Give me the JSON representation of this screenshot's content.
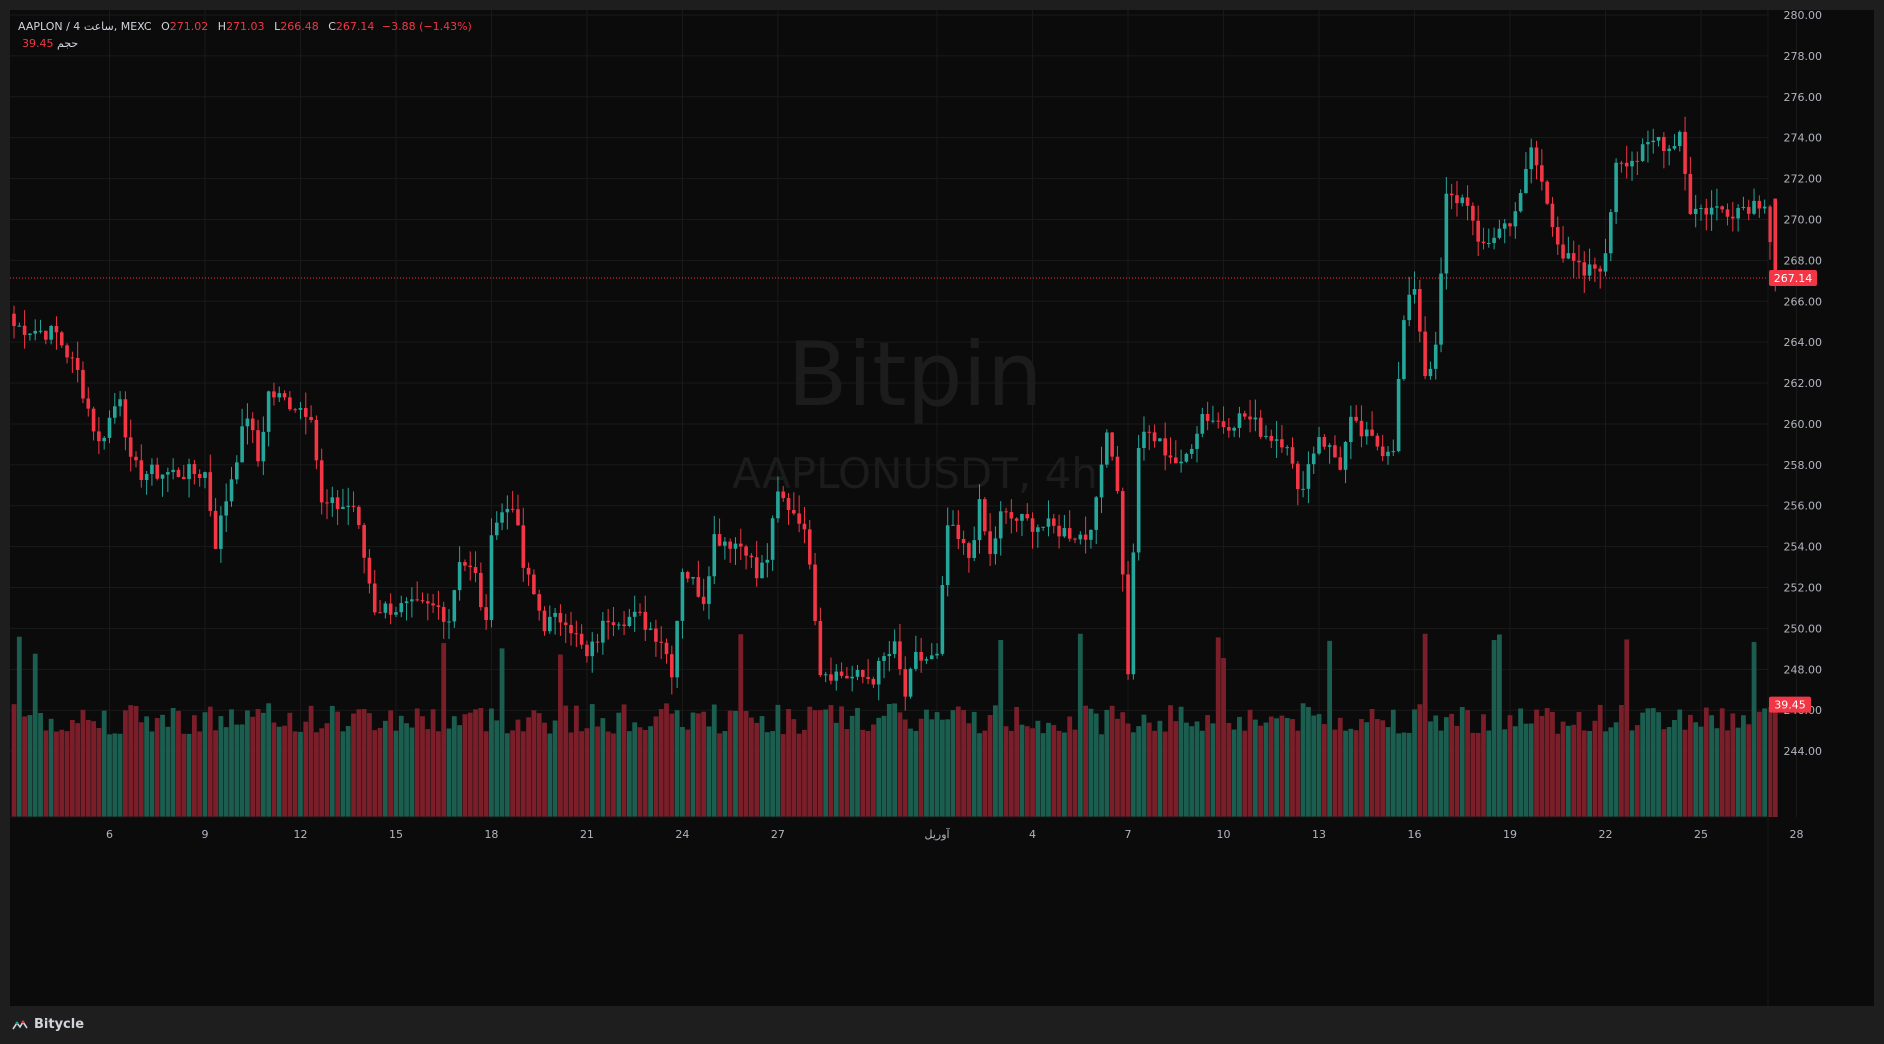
{
  "legend": {
    "symbol": "AAPLON / 4 ساعت, MEXC",
    "open_label": "O",
    "open": "271.02",
    "high_label": "H",
    "high": "271.03",
    "low_label": "L",
    "low": "266.48",
    "close_label": "C",
    "close": "267.14",
    "change": "−3.88 (−1.43%)",
    "volume_label": "حجم",
    "volume": "39.45"
  },
  "watermark": {
    "brand": "Bitpin",
    "symbol": "AAPLONUSDT, 4h"
  },
  "footer": {
    "brand": "Bitycle",
    "brand_icon": "bitycle-logo-icon"
  },
  "colors": {
    "up": "#26a69a",
    "down": "#f23645",
    "background": "#0b0b0b",
    "text": "#d1d4dc"
  },
  "chart_data": {
    "type": "candlestick",
    "interval": "4h",
    "ylim": [
      242.0,
      280.0
    ],
    "y_ticks": [
      "280.00",
      "278.00",
      "276.00",
      "274.00",
      "272.00",
      "270.00",
      "268.00",
      "266.00",
      "264.00",
      "262.00",
      "260.00",
      "258.00",
      "256.00",
      "254.00",
      "252.00",
      "250.00",
      "248.00",
      "246.00",
      "244.00"
    ],
    "x_tick_labels": [
      {
        "label": "6",
        "bar": 18
      },
      {
        "label": "9",
        "bar": 36
      },
      {
        "label": "12",
        "bar": 54
      },
      {
        "label": "15",
        "bar": 72
      },
      {
        "label": "18",
        "bar": 90
      },
      {
        "label": "21",
        "bar": 108
      },
      {
        "label": "24",
        "bar": 126
      },
      {
        "label": "27",
        "bar": 144
      },
      {
        "label": "آوریل",
        "bar": 174
      },
      {
        "label": "4",
        "bar": 192
      },
      {
        "label": "7",
        "bar": 210
      },
      {
        "label": "10",
        "bar": 228
      },
      {
        "label": "13",
        "bar": 246
      },
      {
        "label": "16",
        "bar": 264
      },
      {
        "label": "19",
        "bar": 282
      },
      {
        "label": "22",
        "bar": 300
      },
      {
        "label": "25",
        "bar": 318
      },
      {
        "label": "28",
        "bar": 336
      }
    ],
    "last_price": 267.14,
    "last_price_label": "267.14",
    "last_volume_label": "39.45",
    "close_path": [
      [
        0,
        264.8
      ],
      [
        8,
        264.4
      ],
      [
        12,
        262.5
      ],
      [
        16,
        259.0
      ],
      [
        20,
        261.5
      ],
      [
        22,
        258.0
      ],
      [
        24,
        257.6
      ],
      [
        36,
        257.6
      ],
      [
        38,
        254.2
      ],
      [
        42,
        258.5
      ],
      [
        44,
        260.5
      ],
      [
        46,
        258.2
      ],
      [
        48,
        261.5
      ],
      [
        56,
        260.6
      ],
      [
        58,
        256.0
      ],
      [
        64,
        256.0
      ],
      [
        66,
        253.5
      ],
      [
        68,
        251.0
      ],
      [
        80,
        251.0
      ],
      [
        82,
        250.5
      ],
      [
        84,
        253.5
      ],
      [
        87,
        252.5
      ],
      [
        89,
        250.0
      ],
      [
        90,
        255.0
      ],
      [
        94,
        256.2
      ],
      [
        96,
        253.0
      ],
      [
        100,
        250.2
      ],
      [
        104,
        250.6
      ],
      [
        108,
        248.5
      ],
      [
        112,
        250.6
      ],
      [
        118,
        250.5
      ],
      [
        122,
        249.5
      ],
      [
        124,
        248.0
      ],
      [
        126,
        253.0
      ],
      [
        130,
        251.5
      ],
      [
        132,
        254.5
      ],
      [
        138,
        254.0
      ],
      [
        140,
        252.5
      ],
      [
        142,
        253.5
      ],
      [
        144,
        256.5
      ],
      [
        148,
        255.5
      ],
      [
        150,
        253.5
      ],
      [
        152,
        248.0
      ],
      [
        158,
        247.6
      ],
      [
        162,
        247.6
      ],
      [
        164,
        248.5
      ],
      [
        166,
        249.0
      ],
      [
        168,
        246.7
      ],
      [
        170,
        248.5
      ],
      [
        174,
        248.5
      ],
      [
        176,
        255.0
      ],
      [
        180,
        253.5
      ],
      [
        182,
        255.9
      ],
      [
        184,
        253.5
      ],
      [
        186,
        255.5
      ],
      [
        194,
        255.0
      ],
      [
        202,
        254.5
      ],
      [
        204,
        256.0
      ],
      [
        206,
        260.0
      ],
      [
        208,
        257.0
      ],
      [
        210,
        248.0
      ],
      [
        212,
        259.0
      ],
      [
        214,
        259.5
      ],
      [
        218,
        258.5
      ],
      [
        220,
        257.8
      ],
      [
        224,
        260.5
      ],
      [
        228,
        260.0
      ],
      [
        232,
        260.4
      ],
      [
        236,
        259.5
      ],
      [
        240,
        259.2
      ],
      [
        242,
        256.5
      ],
      [
        246,
        259.5
      ],
      [
        250,
        258.0
      ],
      [
        252,
        260.0
      ],
      [
        254,
        259.5
      ],
      [
        258,
        258.8
      ],
      [
        260,
        259.0
      ],
      [
        262,
        265.0
      ],
      [
        264,
        266.8
      ],
      [
        266,
        262.5
      ],
      [
        268,
        263.5
      ],
      [
        270,
        271.0
      ],
      [
        274,
        271.0
      ],
      [
        276,
        268.5
      ],
      [
        282,
        270.0
      ],
      [
        284,
        271.0
      ],
      [
        286,
        273.5
      ],
      [
        290,
        270.0
      ],
      [
        292,
        268.2
      ],
      [
        296,
        267.3
      ],
      [
        300,
        268.0
      ],
      [
        302,
        273.0
      ],
      [
        306,
        273.0
      ],
      [
        310,
        274.0
      ],
      [
        312,
        273.5
      ],
      [
        314,
        274.3
      ],
      [
        316,
        270.5
      ],
      [
        324,
        270.5
      ],
      [
        328,
        270.8
      ],
      [
        330,
        271.0
      ],
      [
        332,
        267.14
      ]
    ],
    "candles": []
  }
}
